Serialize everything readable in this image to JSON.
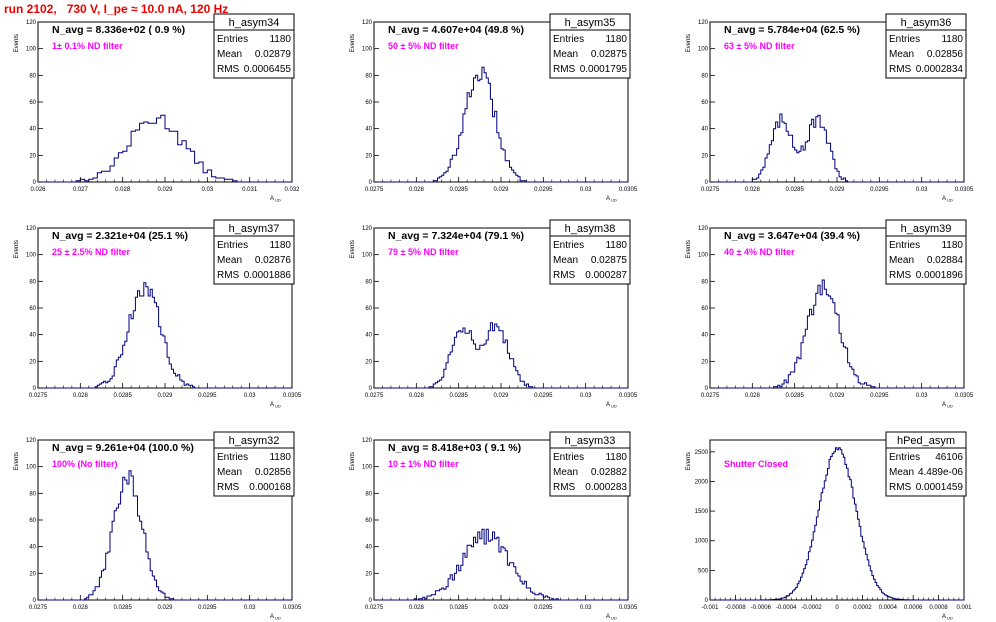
{
  "page_title": "run 2102,   730 V, I_pe ≈ 10.0 nA, 120 Hz",
  "colors": {
    "hist": "#000080",
    "annotation": "#ff00ff",
    "title": "#ee0000"
  },
  "chart_data": [
    {
      "type": "histogram",
      "name_box": "h_asym34",
      "ylabel": "Events",
      "xlabel": "A_UD",
      "xlim": [
        0.026,
        0.032
      ],
      "ylim": [
        0,
        120
      ],
      "xticks": [
        "0.026",
        "0.027",
        "0.028",
        "0.029",
        "0.03",
        "0.031",
        "0.032"
      ],
      "yticks": [
        "0",
        "20",
        "40",
        "60",
        "80",
        "100",
        "120"
      ],
      "stats": {
        "Entries": "1180",
        "Mean": "0.02879",
        "RMS": "0.0006455"
      },
      "n_avg_label": "N_avg = 8.336e+02 ( 0.9 %)",
      "filter_label": "1± 0.1% ND filter",
      "distribution": {
        "shape": "gauss",
        "mean": 0.02879,
        "sigma": 0.000646,
        "peak": 48,
        "bins": 60
      }
    },
    {
      "type": "histogram",
      "name_box": "h_asym35",
      "ylabel": "Events",
      "xlabel": "A_UD",
      "xlim": [
        0.0275,
        0.0305
      ],
      "ylim": [
        0,
        120
      ],
      "xticks": [
        "0.0275",
        "0.028",
        "0.0285",
        "0.029",
        "0.0295",
        "0.03",
        "0.0305"
      ],
      "yticks": [
        "0",
        "20",
        "40",
        "60",
        "80",
        "100",
        "120"
      ],
      "stats": {
        "Entries": "1180",
        "Mean": "0.02875",
        "RMS": "0.0001795"
      },
      "n_avg_label": "N_avg = 4.607e+04 (49.8 %)",
      "filter_label": "50 ± 5% ND filter",
      "distribution": {
        "shape": "gauss",
        "mean": 0.02875,
        "sigma": 0.00018,
        "peak": 82,
        "bins": 120
      }
    },
    {
      "type": "histogram",
      "name_box": "h_asym36",
      "ylabel": "Events",
      "xlabel": "A_UD",
      "xlim": [
        0.0275,
        0.0305
      ],
      "ylim": [
        0,
        120
      ],
      "xticks": [
        "0.0275",
        "0.028",
        "0.0285",
        "0.029",
        "0.0295",
        "0.03",
        "0.0305"
      ],
      "yticks": [
        "0",
        "20",
        "40",
        "60",
        "80",
        "100",
        "120"
      ],
      "stats": {
        "Entries": "1180",
        "Mean": "0.02856",
        "RMS": "0.0002834"
      },
      "n_avg_label": "N_avg = 5.784e+04 (62.5 %)",
      "filter_label": "63 ± 5% ND filter",
      "distribution": {
        "shape": "double",
        "mean": 0.02856,
        "sigma": 0.00013,
        "sep": 0.00042,
        "peak": 48,
        "bins": 120
      }
    },
    {
      "type": "histogram",
      "name_box": "h_asym37",
      "ylabel": "Events",
      "xlabel": "A_UD",
      "xlim": [
        0.0275,
        0.0305
      ],
      "ylim": [
        0,
        120
      ],
      "xticks": [
        "0.0275",
        "0.028",
        "0.0285",
        "0.029",
        "0.0295",
        "0.03",
        "0.0305"
      ],
      "yticks": [
        "0",
        "20",
        "40",
        "60",
        "80",
        "100",
        "120"
      ],
      "stats": {
        "Entries": "1180",
        "Mean": "0.02876",
        "RMS": "0.0001886"
      },
      "n_avg_label": "N_avg = 2.321e+04 (25.1 %)",
      "filter_label": "25 ± 2.5% ND filter",
      "distribution": {
        "shape": "gauss",
        "mean": 0.02876,
        "sigma": 0.00019,
        "peak": 76,
        "bins": 120
      }
    },
    {
      "type": "histogram",
      "name_box": "h_asym38",
      "ylabel": "Events",
      "xlabel": "A_UD",
      "xlim": [
        0.0275,
        0.0305
      ],
      "ylim": [
        0,
        120
      ],
      "xticks": [
        "0.0275",
        "0.028",
        "0.0285",
        "0.029",
        "0.0295",
        "0.03",
        "0.0305"
      ],
      "yticks": [
        "0",
        "20",
        "40",
        "60",
        "80",
        "100",
        "120"
      ],
      "stats": {
        "Entries": "1180",
        "Mean": "0.02875",
        "RMS": "0.000287"
      },
      "n_avg_label": "N_avg = 7.324e+04 (79.1 %)",
      "filter_label": "79 ± 5% ND filter",
      "distribution": {
        "shape": "double",
        "mean": 0.02875,
        "sigma": 0.00014,
        "sep": 0.0004,
        "peak": 48,
        "bins": 120
      }
    },
    {
      "type": "histogram",
      "name_box": "h_asym39",
      "ylabel": "Events",
      "xlabel": "A_UD",
      "xlim": [
        0.0275,
        0.0305
      ],
      "ylim": [
        0,
        120
      ],
      "xticks": [
        "0.0275",
        "0.028",
        "0.0285",
        "0.029",
        "0.0295",
        "0.03",
        "0.0305"
      ],
      "yticks": [
        "0",
        "20",
        "40",
        "60",
        "80",
        "100",
        "120"
      ],
      "stats": {
        "Entries": "1180",
        "Mean": "0.02884",
        "RMS": "0.0001896"
      },
      "n_avg_label": "N_avg = 3.647e+04 (39.4 %)",
      "filter_label": "40 ± 4% ND filter",
      "distribution": {
        "shape": "gauss",
        "mean": 0.02884,
        "sigma": 0.00019,
        "peak": 75,
        "bins": 120
      }
    },
    {
      "type": "histogram",
      "name_box": "h_asym32",
      "ylabel": "Events",
      "xlabel": "A_UD",
      "xlim": [
        0.0275,
        0.0305
      ],
      "ylim": [
        0,
        120
      ],
      "xticks": [
        "0.0275",
        "0.028",
        "0.0285",
        "0.029",
        "0.0295",
        "0.03",
        "0.0305"
      ],
      "yticks": [
        "0",
        "20",
        "40",
        "60",
        "80",
        "100",
        "120"
      ],
      "stats": {
        "Entries": "1180",
        "Mean": "0.02856",
        "RMS": "0.000168"
      },
      "n_avg_label": "N_avg = 9.261e+04 (100.0 %)",
      "filter_label": "100% (No filter)",
      "distribution": {
        "shape": "gauss",
        "mean": 0.02856,
        "sigma": 0.00017,
        "peak": 92,
        "bins": 120
      }
    },
    {
      "type": "histogram",
      "name_box": "h_asym33",
      "ylabel": "Events",
      "xlabel": "A_UD",
      "xlim": [
        0.0275,
        0.0305
      ],
      "ylim": [
        0,
        120
      ],
      "xticks": [
        "0.0275",
        "0.028",
        "0.0285",
        "0.029",
        "0.0295",
        "0.03",
        "0.0305"
      ],
      "yticks": [
        "0",
        "20",
        "40",
        "60",
        "80",
        "100",
        "120"
      ],
      "stats": {
        "Entries": "1180",
        "Mean": "0.02882",
        "RMS": "0.000283"
      },
      "n_avg_label": "N_avg = 8.418e+03 ( 9.1 %)",
      "filter_label": "10 ± 1% ND filter",
      "distribution": {
        "shape": "gauss",
        "mean": 0.02882,
        "sigma": 0.00028,
        "peak": 48,
        "bins": 120
      }
    },
    {
      "type": "histogram",
      "name_box": "hPed_asym",
      "ylabel": "Events",
      "xlabel": "A_UD",
      "xlim": [
        -0.001,
        0.001
      ],
      "ylim": [
        0,
        2700
      ],
      "xticks": [
        "-0.001",
        "-0.0008",
        "-0.0006",
        "-0.0004",
        "-0.0002",
        "0",
        "0.0002",
        "0.0004",
        "0.0006",
        "0.0008",
        "0.001"
      ],
      "yticks": [
        "0",
        "500",
        "1000",
        "1500",
        "2000",
        "2500"
      ],
      "stats": {
        "Entries": "46106",
        "Mean": "4.489e-06",
        "RMS": "0.0001459"
      },
      "n_avg_label": "",
      "filter_label": "Shutter Closed",
      "distribution": {
        "shape": "gauss",
        "mean": 4.5e-06,
        "sigma": 0.000146,
        "peak": 2550,
        "bins": 160
      }
    }
  ]
}
